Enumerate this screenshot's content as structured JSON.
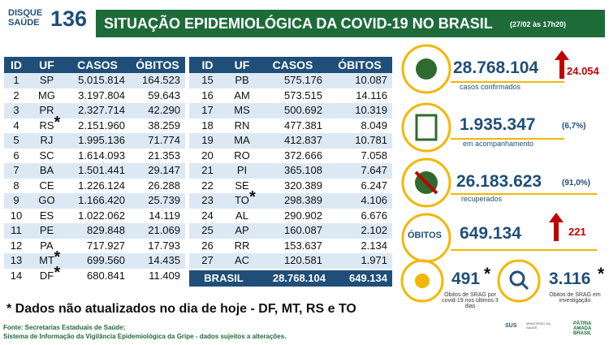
{
  "header": {
    "logo_top": "DISQUE",
    "logo_bottom": "SAÚDE",
    "logo_number": "136",
    "title": "SITUAÇÃO EPIDEMIOLÓGICA DA COVID-19 NO BRASIL",
    "date": "(27/02 às 17h20)"
  },
  "tables": [
    {
      "columns": [
        "ID",
        "UF",
        "CASOS",
        "ÓBITOS"
      ],
      "rows": [
        [
          "1",
          "SP",
          "5.015.814",
          "164.523"
        ],
        [
          "2",
          "MG",
          "3.197.804",
          "59.643"
        ],
        [
          "3",
          "PR",
          "2.327.714",
          "42.290"
        ],
        [
          "4",
          "RS",
          "2.151.960",
          "38.259",
          "*"
        ],
        [
          "5",
          "RJ",
          "1.995.136",
          "71.774"
        ],
        [
          "6",
          "SC",
          "1.614.093",
          "21.353"
        ],
        [
          "7",
          "BA",
          "1.501.441",
          "29.147"
        ],
        [
          "8",
          "CE",
          "1.226.124",
          "26.288"
        ],
        [
          "9",
          "GO",
          "1.166.420",
          "25.739"
        ],
        [
          "10",
          "ES",
          "1.022.062",
          "14.119"
        ],
        [
          "11",
          "PE",
          "829.848",
          "21.069"
        ],
        [
          "12",
          "PA",
          "717.927",
          "17.793"
        ],
        [
          "13",
          "MT",
          "699.560",
          "14.435",
          "*"
        ],
        [
          "14",
          "DF",
          "680.841",
          "11.409",
          "*"
        ]
      ]
    },
    {
      "columns": [
        "ID",
        "UF",
        "CASOS",
        "ÓBITOS"
      ],
      "rows": [
        [
          "15",
          "PB",
          "575.176",
          "10.087"
        ],
        [
          "16",
          "AM",
          "573.515",
          "14.116"
        ],
        [
          "17",
          "MS",
          "500.692",
          "10.319"
        ],
        [
          "18",
          "RN",
          "477.381",
          "8.049"
        ],
        [
          "19",
          "MA",
          "412.837",
          "10.781"
        ],
        [
          "20",
          "RO",
          "372.666",
          "7.058"
        ],
        [
          "21",
          "PI",
          "365.108",
          "7.647"
        ],
        [
          "22",
          "SE",
          "320.389",
          "6.247"
        ],
        [
          "23",
          "TO",
          "298.389",
          "4.106",
          "*"
        ],
        [
          "24",
          "AL",
          "290.902",
          "6.676"
        ],
        [
          "25",
          "AP",
          "160.087",
          "2.102"
        ],
        [
          "26",
          "RR",
          "153.637",
          "2.134"
        ],
        [
          "27",
          "AC",
          "120.581",
          "1.971"
        ]
      ],
      "total": [
        "BRASIL",
        "28.768.104",
        "649.134"
      ]
    }
  ],
  "stats": {
    "cases": {
      "value": "28.768.104",
      "new": "24.054",
      "label": "casos confirmados"
    },
    "monitoring": {
      "value": "1.935.347",
      "percent": "(6,7%)",
      "label": "em acompanhamento"
    },
    "recovered": {
      "value": "26.183.623",
      "percent": "(91,0%)",
      "label": "recuperados"
    },
    "deaths": {
      "label": "ÓBITOS",
      "value": "649.134",
      "new": "221"
    },
    "srag_recent": {
      "value": "491",
      "mark": "*",
      "label": "Óbitos de SRAG por covid-19 nos últimos 3 dias"
    },
    "srag_investigation": {
      "value": "3.116",
      "mark": "*",
      "label": "Óbitos de SRAG em investigação"
    }
  },
  "footnote": "* Dados não atualizados no dia de hoje - DF, MT, RS e TO",
  "source": [
    "Fonte: Secretarias Estaduais de Saúde;",
    "Sistema de Informação da Vigilância Epidemiológica da Gripe - dados sujeitos a alterações."
  ],
  "logos": {
    "sus": "SUS",
    "ministry": "MINISTÉRIO DA SAÚDE",
    "government": "PÁTRIA AMADA BRASIL"
  }
}
